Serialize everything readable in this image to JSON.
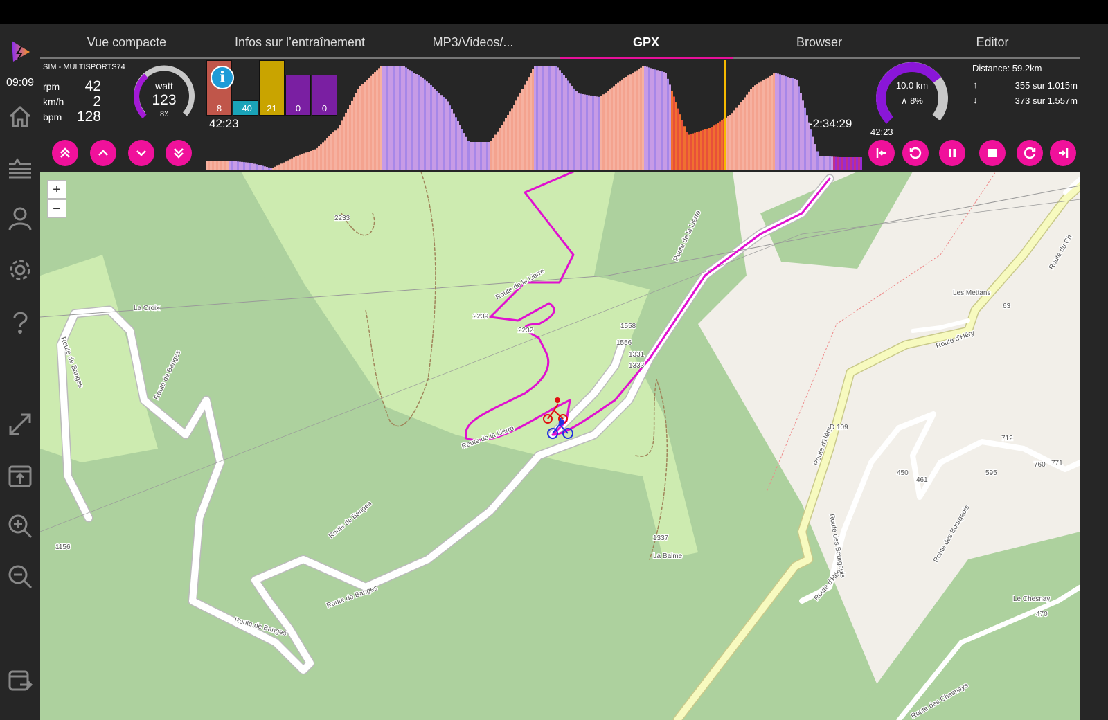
{
  "clock": "09:09",
  "tabs": [
    {
      "label": "Vue compacte"
    },
    {
      "label": "Infos sur l’entraînement"
    },
    {
      "label": "MP3/Videos/..."
    },
    {
      "label": "GPX",
      "active": true
    },
    {
      "label": "Browser"
    },
    {
      "label": "Editor"
    }
  ],
  "device": "SIM - MULTISPORTS74",
  "metrics": [
    {
      "unit": "rpm",
      "value": "42"
    },
    {
      "unit": "km/h",
      "value": "2"
    },
    {
      "unit": "bpm",
      "value": "128"
    }
  ],
  "power_gauge": {
    "label": "watt",
    "value": "123",
    "sub": "8٪",
    "level": 0.35
  },
  "tiles": [
    {
      "value": "8",
      "color": "#c0564a"
    },
    {
      "value": "-40",
      "color": "#1aa3b8"
    },
    {
      "value": "21",
      "color": "#c9a400"
    },
    {
      "value": "0",
      "color": "#7a1fa2"
    },
    {
      "value": "0",
      "color": "#7a1fa2"
    }
  ],
  "elapsed": "42:23",
  "remaining": "-2:34:29",
  "progress": 0.79,
  "distance_gauge": {
    "distance": "10.0 km",
    "slope": "∧ 8%",
    "time": "42:23",
    "level": 0.7
  },
  "stats": {
    "distance": "Distance: 59.2km",
    "up_icon": "↑",
    "up": "355 sur 1.015m",
    "down_icon": "↓",
    "down": "373 sur 1.557m"
  },
  "controls": {
    "up2": "double-chevron-up",
    "up": "chevron-up",
    "down": "chevron-down",
    "down2": "double-chevron-down"
  },
  "accent": "#f0119b",
  "map": {
    "zoom_in": "+",
    "zoom_out": "−",
    "labels": [
      "La Croix",
      "Route de Banges",
      "Route de Banges",
      "Route de Banges",
      "Route de Banges",
      "Route de Banges",
      "Route de la Lierre",
      "Route de la Lierre",
      "Route de la Lierre",
      "2233",
      "2239",
      "2232",
      "1558",
      "1556",
      "1331",
      "1333",
      "1337",
      "La Balme",
      "Les Mettans",
      "Route d'Héry",
      "Route d'Héry",
      "Route d'Héry",
      "D 109",
      "Route des Bourgeois",
      "Route des Bourgeois",
      "Le Chesnay",
      "712",
      "760",
      "771",
      "595",
      "461",
      "450",
      "470",
      "1156",
      "63",
      "Route du Ch",
      "Route des Chesnays"
    ]
  },
  "elevation_profile": [
    12,
    13,
    10,
    2,
    18,
    30,
    60,
    120,
    150,
    150,
    130,
    100,
    40,
    40,
    90,
    150,
    150,
    110,
    105,
    130,
    150,
    140,
    50,
    60,
    80,
    120,
    140,
    130,
    20,
    18,
    18
  ]
}
